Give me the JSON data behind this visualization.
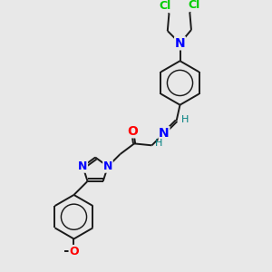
{
  "background_color": "#e8e8e8",
  "atom_colors": {
    "C": "#000000",
    "N": "#0000ff",
    "O": "#ff0000",
    "Cl": "#00cc00",
    "H": "#008080"
  },
  "bond_color": "#1a1a1a",
  "figsize": [
    3.0,
    3.0
  ],
  "dpi": 100,
  "lw": 1.4,
  "font_size_atom": 9,
  "font_size_small": 8
}
